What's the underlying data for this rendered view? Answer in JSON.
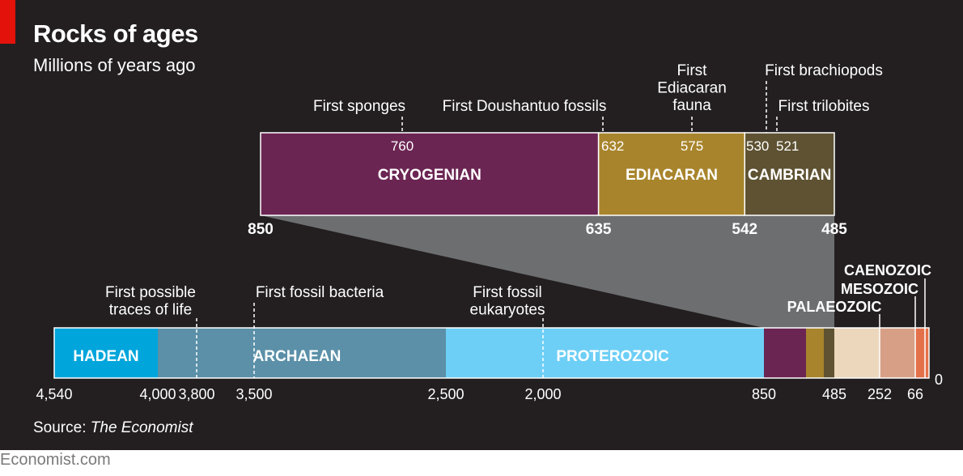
{
  "title": "Rocks of ages",
  "subtitle": "Millions of years ago",
  "source_label": "Source:",
  "source_name": "The Economist",
  "brand": "Economist.com",
  "colors": {
    "background": "#231f20",
    "accent_red": "#e3120b",
    "zoom_wedge": "#6d6e70",
    "axis_text": "#ffffff"
  },
  "chart_data": [
    {
      "type": "bar",
      "orientation": "horizontal-timeline",
      "direction": "reversed",
      "xlim": [
        850,
        485
      ],
      "tick_labels": [
        "850",
        "635",
        "542",
        "485"
      ],
      "periods": [
        {
          "name": "CRYOGENIAN",
          "start": 850,
          "end": 635,
          "color": "#6b2553"
        },
        {
          "name": "EDIACARAN",
          "start": 635,
          "end": 542,
          "color": "#a8842c"
        },
        {
          "name": "CAMBRIAN",
          "start": 542,
          "end": 485,
          "color": "#5e5232"
        }
      ],
      "events": [
        {
          "label": "First sponges",
          "value": "760",
          "x": 760
        },
        {
          "label": "First Doushantuo fossils",
          "value": "632",
          "x": 632
        },
        {
          "label": "First Ediacaran fauna",
          "value": "575",
          "x": 575
        },
        {
          "label": "First brachiopods",
          "value": "530",
          "x": 530
        },
        {
          "label": "First trilobites",
          "value": "521",
          "x": 521
        }
      ]
    },
    {
      "type": "bar",
      "orientation": "horizontal-timeline",
      "direction": "reversed",
      "xlim": [
        4540,
        0
      ],
      "tick_labels": [
        "4,540",
        "4,000",
        "3,800",
        "3,500",
        "2,500",
        "2,000",
        "850",
        "485",
        "252",
        "66",
        "0"
      ],
      "eons": [
        {
          "name": "HADEAN",
          "start": 4540,
          "end": 4000,
          "color": "#00a5dc"
        },
        {
          "name": "ARCHAEAN",
          "start": 4000,
          "end": 2500,
          "color": "#5b90a8"
        },
        {
          "name": "PROTEROZOIC",
          "start": 2500,
          "end": 850,
          "color": "#6dcff6"
        },
        {
          "name": "",
          "start": 850,
          "end": 635,
          "color": "#6b2553"
        },
        {
          "name": "",
          "start": 635,
          "end": 542,
          "color": "#a8842c"
        },
        {
          "name": "",
          "start": 542,
          "end": 485,
          "color": "#5e5232"
        },
        {
          "name": "PALAEOZOIC",
          "start": 485,
          "end": 252,
          "color": "#ecd7bd"
        },
        {
          "name": "MESOZOIC",
          "start": 252,
          "end": 66,
          "color": "#d7a086"
        },
        {
          "name": "CAENOZOIC",
          "start": 66,
          "end": 0,
          "color": "#e4704a"
        }
      ],
      "events": [
        {
          "label": "First possible traces of life",
          "x": 3800
        },
        {
          "label": "First fossil bacteria",
          "x": 3500
        },
        {
          "label": "First fossil eukaryotes",
          "x": 2000
        }
      ]
    }
  ]
}
